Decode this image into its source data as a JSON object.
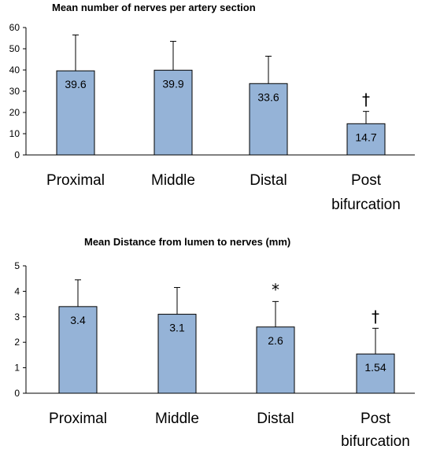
{
  "chart_data": [
    {
      "type": "bar",
      "title": "Mean number of nerves per artery section",
      "categories": [
        "Proximal",
        "Middle",
        "Distal",
        "Post bifurcation"
      ],
      "category_lines": [
        [
          "Proximal"
        ],
        [
          "Middle"
        ],
        [
          "Distal"
        ],
        [
          "Post",
          "bifurcation"
        ]
      ],
      "values": [
        39.6,
        39.9,
        33.6,
        14.7
      ],
      "data_labels": [
        "39.6",
        "39.9",
        "33.6",
        "14.7"
      ],
      "error_upper": [
        56.5,
        53.5,
        46.5,
        20.5
      ],
      "annotations": [
        "",
        "",
        "",
        "†"
      ],
      "ylim": [
        0,
        60
      ],
      "yticks": [
        0,
        10,
        20,
        30,
        40,
        50,
        60
      ],
      "ytick_labels": [
        "0",
        "10",
        "20",
        "30",
        "40",
        "50",
        "60"
      ],
      "grid": false,
      "bar_color": "#95b3d7"
    },
    {
      "type": "bar",
      "title": "Mean Distance from lumen to nerves (mm)",
      "categories": [
        "Proximal",
        "Middle",
        "Distal",
        "Post bifurcation"
      ],
      "category_lines": [
        [
          "Proximal"
        ],
        [
          "Middle"
        ],
        [
          "Distal"
        ],
        [
          "Post",
          "bifurcation"
        ]
      ],
      "values": [
        3.4,
        3.1,
        2.6,
        1.54
      ],
      "data_labels": [
        "3.4",
        "3.1",
        "2.6",
        "1.54"
      ],
      "error_upper": [
        4.45,
        4.15,
        3.6,
        2.55
      ],
      "annotations": [
        "",
        "",
        "*",
        "†"
      ],
      "ylim": [
        0,
        5
      ],
      "yticks": [
        0,
        1,
        2,
        3,
        4,
        5
      ],
      "ytick_labels": [
        "0",
        "1",
        "2",
        "3",
        "4",
        "5"
      ],
      "grid": false,
      "bar_color": "#95b3d7"
    }
  ]
}
